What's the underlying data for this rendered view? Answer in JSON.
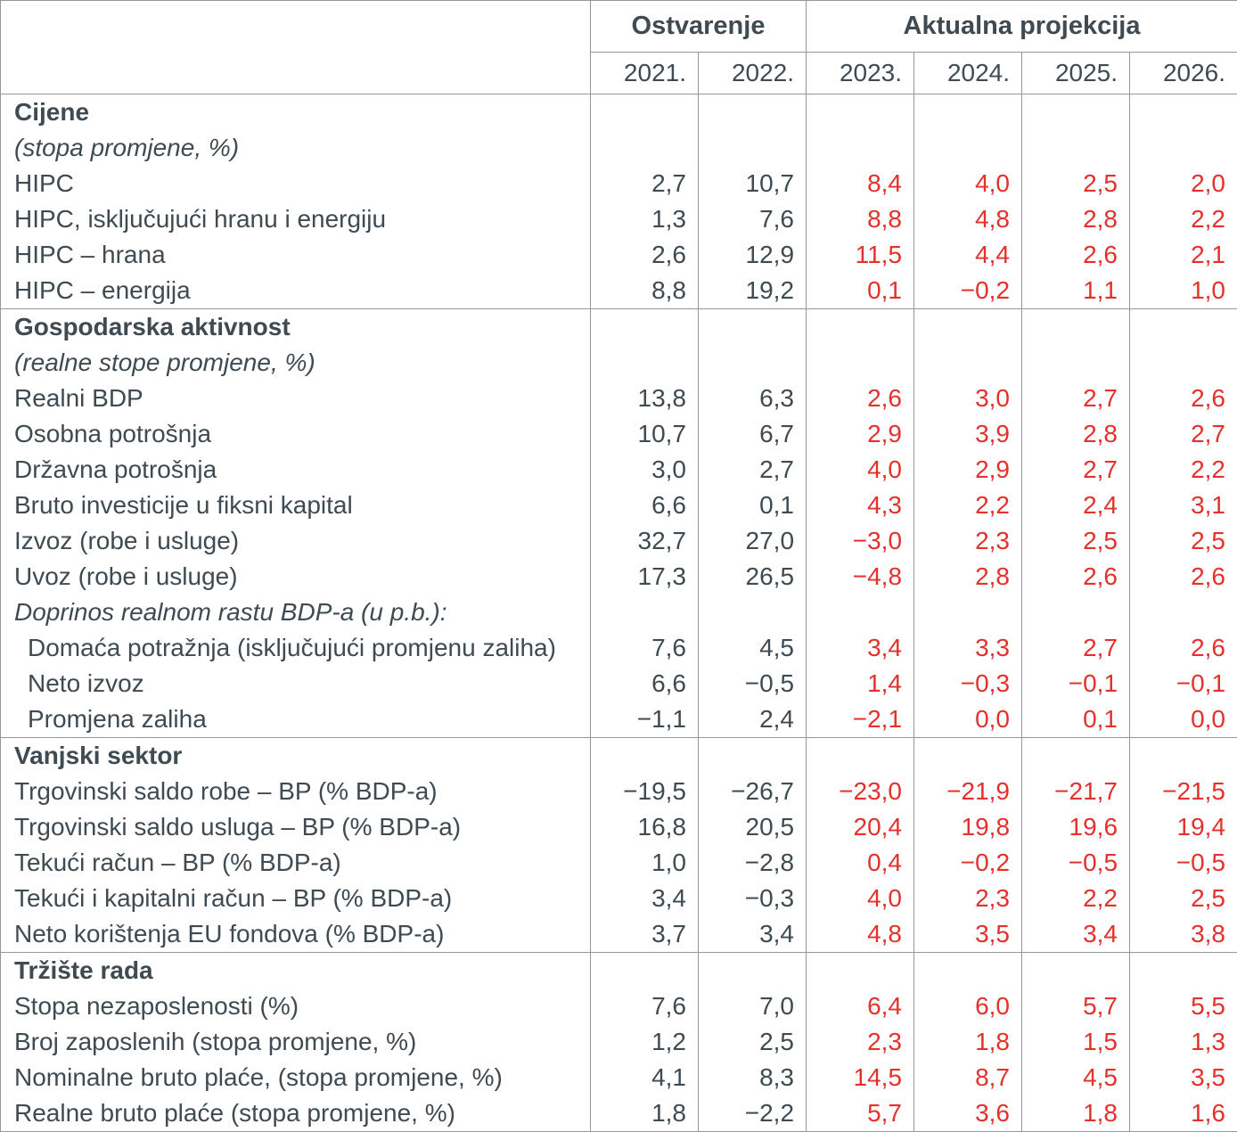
{
  "colors": {
    "text": "#3f4a51",
    "projection_value": "#e4312b",
    "grid_line": "#969696",
    "background": "#ffffff"
  },
  "table": {
    "header": {
      "groups": [
        {
          "label": "Ostvarenje",
          "span": 2
        },
        {
          "label": "Aktualna projekcija",
          "span": 4
        }
      ],
      "years": [
        "2021.",
        "2022.",
        "2023.",
        "2024.",
        "2025.",
        "2026."
      ]
    },
    "sections": [
      {
        "title": "Cijene",
        "rows": [
          {
            "label": "(stopa promjene, %)",
            "style": "italic",
            "values": []
          },
          {
            "label": "HIPC",
            "style": "",
            "values": [
              "2,7",
              "10,7",
              "8,4",
              "4,0",
              "2,5",
              "2,0"
            ]
          },
          {
            "label": "HIPC, isključujući hranu i energiju",
            "style": "",
            "values": [
              "1,3",
              "7,6",
              "8,8",
              "4,8",
              "2,8",
              "2,2"
            ]
          },
          {
            "label": "HIPC – hrana",
            "style": "",
            "values": [
              "2,6",
              "12,9",
              "11,5",
              "4,4",
              "2,6",
              "2,1"
            ]
          },
          {
            "label": "HIPC – energija",
            "style": "",
            "values": [
              "8,8",
              "19,2",
              "0,1",
              "−0,2",
              "1,1",
              "1,0"
            ]
          }
        ]
      },
      {
        "title": "Gospodarska aktivnost",
        "rows": [
          {
            "label": "(realne stope promjene, %)",
            "style": "italic",
            "values": []
          },
          {
            "label": "Realni BDP",
            "style": "",
            "values": [
              "13,8",
              "6,3",
              "2,6",
              "3,0",
              "2,7",
              "2,6"
            ]
          },
          {
            "label": "Osobna potrošnja",
            "style": "",
            "values": [
              "10,7",
              "6,7",
              "2,9",
              "3,9",
              "2,8",
              "2,7"
            ]
          },
          {
            "label": "Državna potrošnja",
            "style": "",
            "values": [
              "3,0",
              "2,7",
              "4,0",
              "2,9",
              "2,7",
              "2,2"
            ]
          },
          {
            "label": "Bruto investicije u fiksni kapital",
            "style": "",
            "values": [
              "6,6",
              "0,1",
              "4,3",
              "2,2",
              "2,4",
              "3,1"
            ]
          },
          {
            "label": "Izvoz (robe i usluge)",
            "style": "",
            "values": [
              "32,7",
              "27,0",
              "−3,0",
              "2,3",
              "2,5",
              "2,5"
            ]
          },
          {
            "label": "Uvoz (robe i usluge)",
            "style": "",
            "values": [
              "17,3",
              "26,5",
              "−4,8",
              "2,8",
              "2,6",
              "2,6"
            ]
          },
          {
            "label": "Doprinos realnom rastu BDP-a (u p.b.):",
            "style": "italic",
            "values": []
          },
          {
            "label": "Domaća potražnja (isključujući promjenu zaliha)",
            "style": "indent",
            "values": [
              "7,6",
              "4,5",
              "3,4",
              "3,3",
              "2,7",
              "2,6"
            ]
          },
          {
            "label": "Neto izvoz",
            "style": "indent",
            "values": [
              "6,6",
              "−0,5",
              "1,4",
              "−0,3",
              "−0,1",
              "−0,1"
            ]
          },
          {
            "label": "Promjena zaliha",
            "style": "indent",
            "values": [
              "−1,1",
              "2,4",
              "−2,1",
              "0,0",
              "0,1",
              "0,0"
            ]
          }
        ]
      },
      {
        "title": "Vanjski sektor",
        "rows": [
          {
            "label": "Trgovinski saldo robe – BP (% BDP-a)",
            "style": "",
            "values": [
              "−19,5",
              "−26,7",
              "−23,0",
              "−21,9",
              "−21,7",
              "−21,5"
            ]
          },
          {
            "label": "Trgovinski saldo usluga – BP (% BDP-a)",
            "style": "",
            "values": [
              "16,8",
              "20,5",
              "20,4",
              "19,8",
              "19,6",
              "19,4"
            ]
          },
          {
            "label": "Tekući račun – BP (% BDP-a)",
            "style": "",
            "values": [
              "1,0",
              "−2,8",
              "0,4",
              "−0,2",
              "−0,5",
              "−0,5"
            ]
          },
          {
            "label": "Tekući i kapitalni račun – BP (% BDP-a)",
            "style": "",
            "values": [
              "3,4",
              "−0,3",
              "4,0",
              "2,3",
              "2,2",
              "2,5"
            ]
          },
          {
            "label": "Neto korištenja EU fondova (% BDP-a)",
            "style": "",
            "values": [
              "3,7",
              "3,4",
              "4,8",
              "3,5",
              "3,4",
              "3,8"
            ]
          }
        ]
      },
      {
        "title": "Tržište rada",
        "rows": [
          {
            "label": "Stopa nezaposlenosti (%)",
            "style": "",
            "values": [
              "7,6",
              "7,0",
              "6,4",
              "6,0",
              "5,7",
              "5,5"
            ]
          },
          {
            "label": "Broj zaposlenih (stopa promjene, %)",
            "style": "",
            "values": [
              "1,2",
              "2,5",
              "2,3",
              "1,8",
              "1,5",
              "1,3"
            ]
          },
          {
            "label": "Nominalne bruto plaće, (stopa promjene, %)",
            "style": "",
            "values": [
              "4,1",
              "8,3",
              "14,5",
              "8,7",
              "4,5",
              "3,5"
            ]
          },
          {
            "label": "Realne bruto plaće (stopa promjene, %)",
            "style": "",
            "values": [
              "1,8",
              "−2,2",
              "5,7",
              "3,6",
              "1,8",
              "1,6"
            ]
          }
        ]
      }
    ]
  }
}
